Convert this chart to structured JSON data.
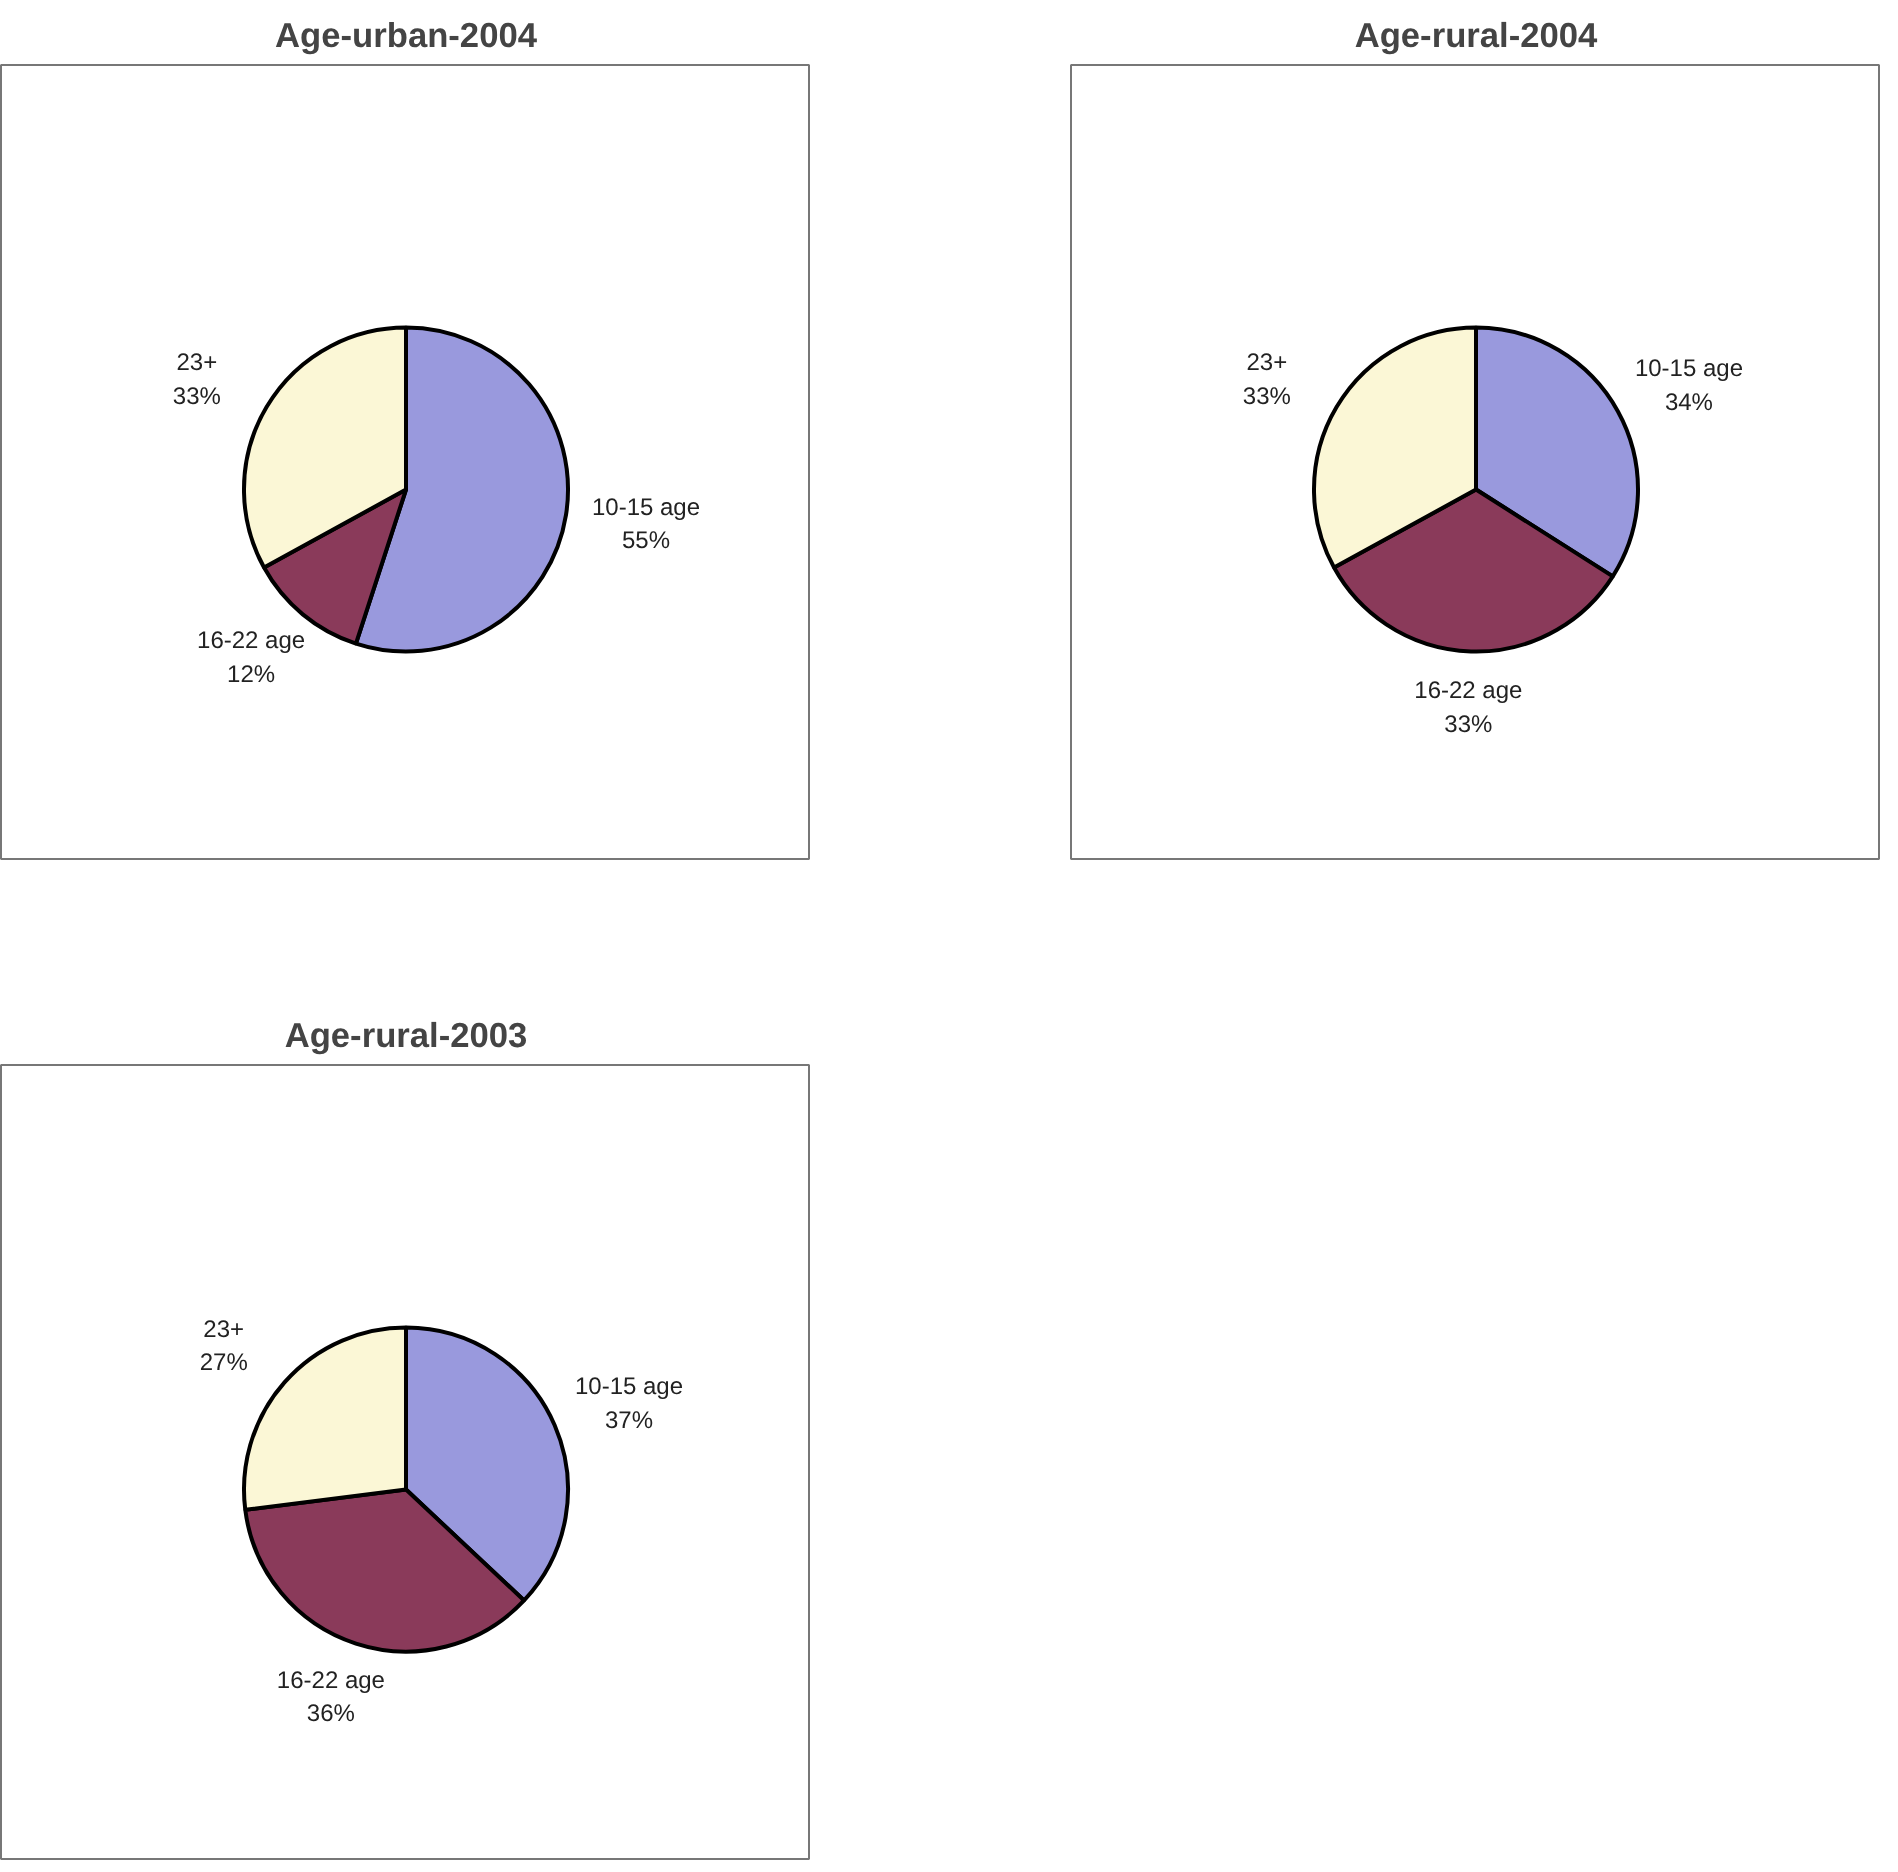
{
  "chart_data": [
    {
      "type": "pie",
      "title": "Age-urban-2004",
      "categories": [
        "10-15 age",
        "16-22 age",
        "23+"
      ],
      "values": [
        55,
        12,
        33
      ],
      "value_labels": [
        "55%",
        "12%",
        "33%"
      ],
      "colors": [
        "#9999dd",
        "#8a3a5a",
        "#fbf7d6"
      ],
      "legend": false
    },
    {
      "type": "pie",
      "title": "Age-rural-2004",
      "categories": [
        "10-15 age",
        "16-22 age",
        "23+"
      ],
      "values": [
        34,
        33,
        33
      ],
      "value_labels": [
        "34%",
        "33%",
        "33%"
      ],
      "colors": [
        "#9999dd",
        "#8a3a5a",
        "#fbf7d6"
      ],
      "legend": false
    },
    {
      "type": "pie",
      "title": "Age-rural-2003",
      "categories": [
        "10-15 age",
        "16-22 age",
        "23+"
      ],
      "values": [
        37,
        36,
        27
      ],
      "value_labels": [
        "37%",
        "36%",
        "27%"
      ],
      "colors": [
        "#9999dd",
        "#8a3a5a",
        "#fbf7d6"
      ],
      "legend": false
    }
  ]
}
